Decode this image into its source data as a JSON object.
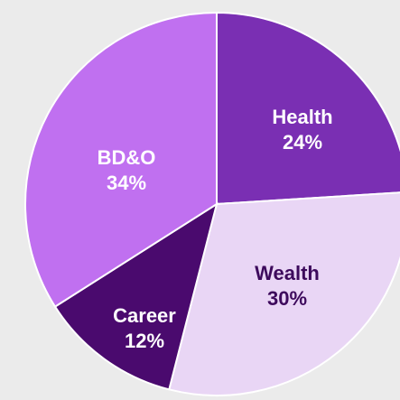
{
  "chart_data": {
    "type": "pie",
    "categories": [
      "Health",
      "Wealth",
      "Career",
      "BD&O"
    ],
    "values": [
      24,
      30,
      12,
      34
    ],
    "value_labels": [
      "24%",
      "30%",
      "12%",
      "34%"
    ],
    "colors": [
      "#7a2fb3",
      "#e9d6f5",
      "#4a0a6e",
      "#c070f0"
    ],
    "label_colors": [
      "#ffffff",
      "#3d0a5c",
      "#ffffff",
      "#ffffff"
    ]
  }
}
